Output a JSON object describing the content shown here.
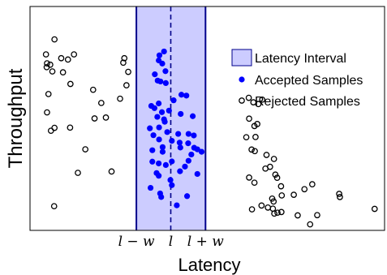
{
  "chart_data": {
    "type": "scatter",
    "xlabel": "Latency",
    "ylabel": "Throughput",
    "xlim": [
      0,
      100
    ],
    "ylim": [
      0,
      100
    ],
    "grid": false,
    "legend_position": "top-right",
    "interval": {
      "center": 39.7,
      "low": 30,
      "high": 49.5,
      "color": "#ccccff",
      "edge_color": "#00008b",
      "center_line_color": "#00008b"
    },
    "x_ticks": [
      {
        "value": 30,
        "label": "l − w"
      },
      {
        "value": 39.7,
        "label": "l"
      },
      {
        "value": 49.5,
        "label": "l + w"
      }
    ],
    "legend": [
      {
        "label": "Latency Interval",
        "marker": "patch"
      },
      {
        "label": "Accepted Samples",
        "marker": "filled-circle"
      },
      {
        "label": "Rejected Samples",
        "marker": "open-circle"
      }
    ],
    "series": [
      {
        "name": "Accepted Samples",
        "color": "#0000ff",
        "filled": true,
        "points": [
          [
            36.5,
            78.2
          ],
          [
            37.8,
            79.9
          ],
          [
            36.3,
            75.9
          ],
          [
            37.3,
            74.5
          ],
          [
            38.2,
            71.1
          ],
          [
            35.2,
            69.7
          ],
          [
            36.8,
            66.5
          ],
          [
            38.3,
            65.8
          ],
          [
            36.0,
            66.9
          ],
          [
            42.7,
            60.6
          ],
          [
            44.1,
            60.2
          ],
          [
            40.5,
            58.1
          ],
          [
            36.3,
            56.7
          ],
          [
            34.2,
            55.6
          ],
          [
            35.1,
            54.6
          ],
          [
            39.2,
            53.5
          ],
          [
            37.2,
            52.8
          ],
          [
            42.5,
            52.0
          ],
          [
            45.9,
            51.0
          ],
          [
            35.9,
            50.7
          ],
          [
            37.8,
            49.6
          ],
          [
            38.0,
            48.5
          ],
          [
            36.4,
            46.0
          ],
          [
            33.8,
            45.6
          ],
          [
            38.7,
            43.9
          ],
          [
            41.8,
            43.1
          ],
          [
            44.7,
            43.1
          ],
          [
            46.2,
            42.4
          ],
          [
            34.8,
            42.5
          ],
          [
            36.4,
            40.6
          ],
          [
            40.0,
            40.0
          ],
          [
            42.2,
            39.2
          ],
          [
            44.6,
            38.9
          ],
          [
            37.4,
            37.2
          ],
          [
            46.3,
            36.9
          ],
          [
            42.4,
            37.0
          ],
          [
            34.5,
            35.8
          ],
          [
            37.4,
            35.1
          ],
          [
            45.5,
            33.9
          ],
          [
            47.2,
            36.2
          ],
          [
            48.4,
            35.1
          ],
          [
            44.7,
            31.1
          ],
          [
            40.0,
            30.8
          ],
          [
            34.5,
            30.7
          ],
          [
            36.3,
            29.9
          ],
          [
            38.3,
            29.2
          ],
          [
            43.7,
            28.5
          ],
          [
            42.3,
            26.4
          ],
          [
            35.7,
            25.6
          ],
          [
            47.2,
            25.2
          ],
          [
            36.3,
            24.4
          ],
          [
            39.6,
            22.5
          ],
          [
            40.0,
            20.2
          ],
          [
            34.0,
            19.0
          ],
          [
            36.7,
            16.5
          ],
          [
            37.0,
            14.9
          ],
          [
            44.3,
            15.3
          ],
          [
            41.4,
            11.2
          ]
        ]
      },
      {
        "name": "Rejected Samples",
        "color": "#000000",
        "filled": false,
        "points": [
          [
            6.9,
            85.3
          ],
          [
            4.5,
            78.6
          ],
          [
            4.8,
            74.6
          ],
          [
            8.8,
            76.9
          ],
          [
            12.4,
            78.6
          ],
          [
            5.7,
            74.0
          ],
          [
            10.7,
            76.3
          ],
          [
            4.7,
            72.9
          ],
          [
            26.6,
            76.9
          ],
          [
            26.3,
            74.9
          ],
          [
            27.7,
            70.8
          ],
          [
            9.3,
            70.6
          ],
          [
            6.3,
            71.0
          ],
          [
            11.4,
            65.4
          ],
          [
            5.2,
            60.9
          ],
          [
            27.2,
            64.8
          ],
          [
            17.8,
            62.8
          ],
          [
            25.4,
            58.8
          ],
          [
            20.1,
            56.9
          ],
          [
            4.8,
            52.7
          ],
          [
            21.4,
            50.4
          ],
          [
            5.9,
            44.5
          ],
          [
            6.9,
            45.8
          ],
          [
            11.3,
            45.9
          ],
          [
            18.2,
            50.0
          ],
          [
            15.6,
            36.2
          ],
          [
            13.5,
            25.7
          ],
          [
            23.0,
            26.3
          ],
          [
            6.8,
            10.8
          ],
          [
            61.7,
            59.2
          ],
          [
            63.0,
            57.2
          ],
          [
            64.4,
            56.4
          ],
          [
            65.5,
            58.4
          ],
          [
            61.8,
            49.9
          ],
          [
            64.1,
            47.5
          ],
          [
            63.3,
            46.6
          ],
          [
            63.6,
            41.7
          ],
          [
            61.0,
            41.6
          ],
          [
            62.5,
            36.1
          ],
          [
            63.4,
            35.4
          ],
          [
            66.7,
            33.7
          ],
          [
            68.8,
            31.9
          ],
          [
            67.7,
            28.4
          ],
          [
            66.4,
            27.6
          ],
          [
            69.2,
            24.9
          ],
          [
            69.7,
            23.5
          ],
          [
            61.8,
            23.6
          ],
          [
            63.3,
            21.3
          ],
          [
            70.8,
            19.7
          ],
          [
            71.0,
            15.6
          ],
          [
            74.4,
            15.9
          ],
          [
            77.4,
            18.4
          ],
          [
            79.6,
            20.6
          ],
          [
            68.3,
            14.2
          ],
          [
            68.7,
            12.9
          ],
          [
            62.6,
            9.4
          ],
          [
            67.1,
            10.2
          ],
          [
            68.5,
            9.7
          ],
          [
            65.3,
            11.1
          ],
          [
            68.9,
            7.5
          ],
          [
            69.8,
            7.9
          ],
          [
            70.9,
            8.2
          ],
          [
            75.5,
            6.7
          ],
          [
            87.2,
            16.3
          ],
          [
            87.4,
            14.9
          ],
          [
            81.0,
            6.8
          ],
          [
            79.0,
            2.7
          ],
          [
            97.2,
            9.6
          ]
        ]
      }
    ]
  }
}
